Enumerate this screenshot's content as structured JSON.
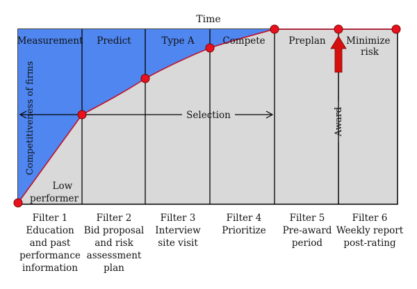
{
  "colors": {
    "blue_region": "#4f86f0",
    "grey_region": "#d9d9d9",
    "curve": "#c0102a",
    "marker": "#e8121e",
    "award_arrow": "#d60f0f",
    "lines": "#000000"
  },
  "axis": {
    "top_label": "Time",
    "y_label": "Competitiveness of firms"
  },
  "regions": {
    "low_performer_lines": [
      "Low",
      "performer"
    ],
    "selection_label": "Selection",
    "award_label": "Award"
  },
  "phases": [
    {
      "name": "Measurement"
    },
    {
      "name": "Predict"
    },
    {
      "name": "Type A"
    },
    {
      "name": "Compete"
    },
    {
      "name": "Preplan"
    },
    {
      "name": "Minimize risk",
      "lines": [
        "Minimize",
        "risk"
      ]
    }
  ],
  "filters": [
    {
      "title": "Filter 1",
      "lines": [
        "Education",
        "and past",
        "performance",
        "information"
      ]
    },
    {
      "title": "Filter 2",
      "lines": [
        "Bid proposal",
        "and risk",
        "assessment",
        "plan"
      ]
    },
    {
      "title": "Filter 3",
      "lines": [
        "Interview",
        "site visit"
      ]
    },
    {
      "title": "Filter 4",
      "lines": [
        "Prioritize"
      ]
    },
    {
      "title": "Filter 5",
      "lines": [
        "Pre-award",
        "period"
      ]
    },
    {
      "title": "Filter 6",
      "lines": [
        "Weekly report",
        "post-rating"
      ]
    }
  ]
}
